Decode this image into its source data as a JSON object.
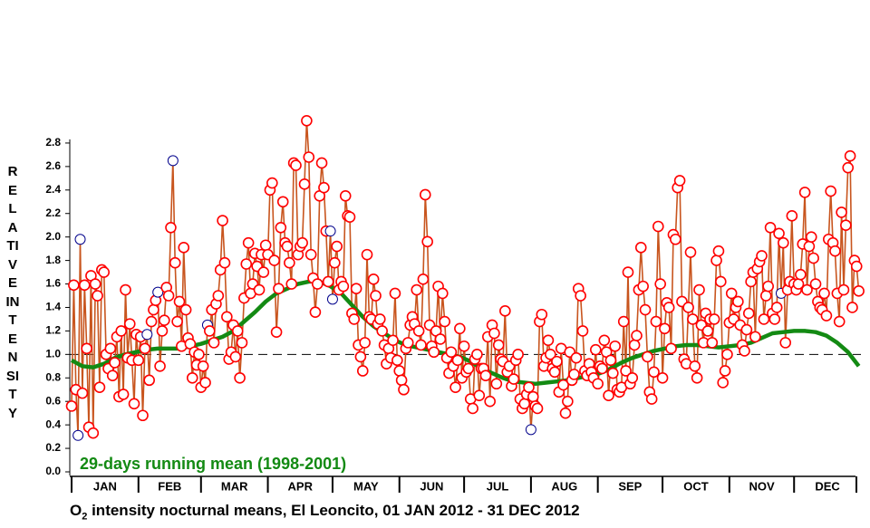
{
  "chart_data": {
    "type": "line",
    "title_main": "O",
    "title_sub": "2",
    "title_rest": " intensity nocturnal means, El Leoncito, 01 JAN 2012 - 31 DEC 2012",
    "ylabel": "RELATIVE INTENSITY",
    "xlim": [
      1,
      367
    ],
    "ylim": [
      0,
      3
    ],
    "yticks": [
      {
        "value": 0,
        "label": "0.0"
      },
      {
        "value": 0.2,
        "label": "0.2"
      },
      {
        "value": 0.4,
        "label": "0.4"
      },
      {
        "value": 0.6,
        "label": "0.6"
      },
      {
        "value": 0.8,
        "label": "0.8"
      },
      {
        "value": 1,
        "label": "1.0"
      },
      {
        "value": 1.2,
        "label": "1.2"
      },
      {
        "value": 1.4,
        "label": "1.4"
      },
      {
        "value": 1.6,
        "label": "1.6"
      },
      {
        "value": 1.8,
        "label": "1.8"
      },
      {
        "value": 2,
        "label": "2.0"
      },
      {
        "value": 2.2,
        "label": "2.2"
      },
      {
        "value": 2.4,
        "label": "2.4"
      },
      {
        "value": 2.6,
        "label": "2.6"
      },
      {
        "value": 2.8,
        "label": "2.8"
      }
    ],
    "month_bounds": [
      1,
      32,
      61,
      92,
      122,
      153,
      183,
      214,
      245,
      275,
      306,
      336,
      367
    ],
    "months": [
      "JAN",
      "FEB",
      "MAR",
      "APR",
      "MAY",
      "JUN",
      "JUL",
      "AUG",
      "SEP",
      "OCT",
      "NOV",
      "DEC"
    ],
    "reference_line": 1,
    "x": [
      1,
      2,
      3,
      4,
      5,
      6,
      7,
      8,
      9,
      10,
      11,
      12,
      13,
      14,
      15,
      16,
      17,
      18,
      19,
      20,
      21,
      22,
      23,
      24,
      25,
      26,
      27,
      28,
      29,
      30,
      31,
      32,
      33,
      34,
      35,
      36,
      37,
      38,
      39,
      40,
      41,
      42,
      43,
      44,
      45,
      46,
      47,
      48,
      49,
      50,
      51,
      52,
      53,
      54,
      55,
      56,
      57,
      58,
      59,
      60,
      61,
      62,
      63,
      64,
      65,
      66,
      67,
      68,
      69,
      70,
      71,
      72,
      73,
      74,
      75,
      76,
      77,
      78,
      79,
      80,
      81,
      82,
      83,
      84,
      85,
      86,
      87,
      88,
      89,
      90,
      91,
      92,
      93,
      94,
      95,
      96,
      97,
      98,
      99,
      100,
      101,
      102,
      103,
      104,
      105,
      106,
      107,
      108,
      109,
      110,
      111,
      112,
      113,
      114,
      115,
      116,
      117,
      118,
      119,
      120,
      121,
      122,
      123,
      124,
      125,
      126,
      127,
      128,
      129,
      130,
      131,
      132,
      133,
      134,
      135,
      136,
      137,
      138,
      139,
      140,
      141,
      142,
      143,
      144,
      145,
      146,
      147,
      148,
      149,
      150,
      151,
      152,
      153,
      154,
      155,
      156,
      157,
      158,
      159,
      160,
      161,
      162,
      163,
      164,
      165,
      166,
      167,
      168,
      169,
      170,
      171,
      172,
      173,
      174,
      175,
      176,
      177,
      178,
      179,
      180,
      181,
      182,
      183,
      184,
      185,
      186,
      187,
      188,
      189,
      190,
      191,
      192,
      193,
      194,
      195,
      196,
      197,
      198,
      199,
      200,
      201,
      202,
      203,
      204,
      205,
      206,
      207,
      208,
      209,
      210,
      211,
      212,
      213,
      214,
      215,
      216,
      217,
      218,
      219,
      220,
      221,
      222,
      223,
      224,
      225,
      226,
      227,
      228,
      229,
      230,
      231,
      232,
      233,
      234,
      235,
      236,
      237,
      238,
      239,
      240,
      241,
      242,
      243,
      244,
      245,
      246,
      247,
      248,
      249,
      250,
      251,
      252,
      253,
      254,
      255,
      256,
      257,
      258,
      259,
      260,
      261,
      262,
      263,
      264,
      265,
      266,
      267,
      268,
      269,
      270,
      271,
      272,
      273,
      274,
      275,
      276,
      277,
      278,
      279,
      280,
      281,
      282,
      283,
      284,
      285,
      286,
      287,
      288,
      289,
      290,
      291,
      292,
      293,
      294,
      295,
      296,
      297,
      298,
      299,
      300,
      301,
      302,
      303,
      304,
      305,
      306,
      307,
      308,
      309,
      310,
      311,
      312,
      313,
      314,
      315,
      316,
      317,
      318,
      319,
      320,
      321,
      322,
      323,
      324,
      325,
      326,
      327,
      328,
      329,
      330,
      331,
      332,
      333,
      334,
      335,
      336,
      337,
      338,
      339,
      340,
      341,
      342,
      343,
      344,
      345,
      346,
      347,
      348,
      349,
      350,
      351,
      352,
      353,
      354,
      355,
      356,
      357,
      358,
      359,
      360,
      361,
      362,
      363,
      364,
      365,
      366
    ],
    "series": [
      {
        "color": "#c8551e",
        "marker_color": "#ff0000",
        "highlight_color": "#00008b",
        "highlight_x": [
          4,
          5,
          36,
          41,
          48,
          64,
          121,
          122,
          214,
          330
        ],
        "values": [
          0.56,
          1.59,
          0.7,
          0.31,
          1.98,
          0.67,
          1.59,
          1.05,
          0.38,
          1.67,
          0.33,
          1.6,
          1.5,
          0.72,
          1.72,
          1.7,
          1.0,
          0.88,
          1.05,
          0.82,
          0.93,
          1.15,
          0.64,
          1.2,
          0.66,
          1.55,
          0.97,
          1.26,
          0.95,
          0.58,
          1.17,
          0.95,
          1.15,
          0.48,
          1.05,
          1.17,
          0.78,
          1.28,
          1.38,
          1.46,
          1.53,
          0.9,
          1.2,
          1.29,
          1.57,
          1.5,
          2.08,
          2.65,
          1.78,
          1.28,
          1.45,
          1.07,
          1.91,
          1.38,
          1.14,
          1.09,
          0.8,
          1.02,
          0.91,
          1.0,
          0.72,
          0.9,
          0.76,
          1.25,
          1.2,
          1.38,
          1.1,
          1.43,
          1.5,
          1.72,
          2.14,
          1.78,
          1.32,
          0.96,
          1.02,
          1.25,
          0.98,
          1.2,
          0.8,
          1.1,
          1.48,
          1.77,
          1.95,
          1.52,
          1.6,
          1.86,
          1.75,
          1.55,
          1.85,
          1.7,
          1.93,
          1.85,
          2.4,
          2.46,
          1.8,
          1.19,
          1.56,
          2.08,
          2.3,
          1.95,
          1.92,
          1.78,
          1.6,
          2.63,
          2.61,
          1.85,
          1.92,
          1.95,
          2.45,
          2.99,
          2.68,
          1.85,
          1.65,
          1.36,
          1.6,
          2.35,
          2.63,
          2.42,
          2.05,
          1.62,
          2.05,
          1.47,
          1.78,
          1.92,
          1.55,
          1.62,
          1.58,
          2.35,
          2.18,
          2.17,
          1.35,
          1.3,
          1.56,
          1.08,
          0.98,
          0.86,
          1.1,
          1.85,
          1.32,
          1.3,
          1.64,
          1.5,
          1.26,
          1.3,
          1.2,
          1.08,
          0.92,
          1.05,
          0.97,
          1.12,
          1.52,
          0.95,
          0.86,
          0.78,
          0.7,
          1.05,
          1.1,
          1.25,
          1.32,
          1.26,
          1.55,
          1.2,
          1.08,
          1.64,
          2.36,
          1.96,
          1.25,
          1.07,
          1.02,
          1.2,
          1.58,
          1.13,
          1.52,
          1.28,
          0.97,
          0.84,
          1.02,
          0.9,
          0.72,
          0.95,
          1.22,
          0.8,
          1.07,
          0.85,
          0.88,
          0.62,
          0.54,
          0.96,
          1.0,
          0.65,
          0.88,
          0.88,
          0.82,
          1.15,
          0.6,
          1.25,
          1.18,
          0.75,
          1.08,
          0.96,
          0.94,
          1.37,
          0.85,
          0.9,
          0.73,
          0.79,
          0.95,
          1.0,
          0.62,
          0.54,
          0.58,
          0.66,
          0.72,
          0.36,
          0.64,
          0.56,
          0.54,
          1.28,
          1.34,
          0.9,
          0.97,
          1.12,
          1.0,
          0.88,
          0.85,
          0.94,
          0.68,
          1.05,
          0.74,
          0.5,
          0.6,
          1.02,
          0.78,
          0.83,
          0.97,
          1.56,
          1.5,
          1.2,
          0.86,
          0.82,
          0.92,
          0.85,
          0.8,
          1.04,
          0.75,
          0.9,
          0.88,
          1.12,
          1.02,
          0.65,
          0.95,
          0.84,
          1.07,
          0.7,
          0.68,
          0.72,
          1.28,
          0.86,
          1.7,
          0.75,
          0.8,
          1.08,
          1.16,
          1.55,
          1.91,
          1.58,
          1.38,
          0.98,
          0.68,
          0.62,
          0.85,
          1.28,
          2.09,
          1.6,
          0.8,
          1.22,
          1.44,
          1.4,
          1.05,
          2.02,
          1.98,
          2.42,
          2.48,
          1.45,
          0.96,
          0.92,
          1.4,
          1.87,
          1.3,
          0.9,
          0.8,
          1.55,
          1.25,
          1.1,
          1.35,
          1.2,
          1.3,
          1.1,
          1.3,
          1.8,
          1.88,
          1.62,
          0.76,
          0.86,
          1.0,
          1.27,
          1.52,
          1.3,
          1.4,
          1.45,
          1.25,
          1.08,
          1.03,
          1.21,
          1.35,
          1.62,
          1.7,
          1.15,
          1.73,
          1.79,
          1.84,
          1.3,
          1.5,
          1.58,
          2.08,
          1.35,
          1.3,
          1.4,
          2.03,
          1.52,
          1.95,
          1.1,
          1.55,
          1.62,
          2.18,
          1.6,
          1.55,
          1.6,
          1.68,
          1.94,
          2.38,
          1.55,
          1.92,
          2.0,
          1.82,
          1.6,
          1.45,
          1.4,
          1.38,
          1.52,
          1.33,
          1.98,
          2.39,
          1.95,
          1.88,
          1.52,
          1.28,
          2.21,
          1.55,
          2.1,
          2.59,
          2.69,
          1.4,
          1.8,
          1.75,
          1.54
        ]
      },
      {
        "name": "29-days running mean (1998-2001)",
        "color": "#138a13",
        "x": [
          1,
          6,
          11,
          16,
          21,
          26,
          31,
          36,
          41,
          46,
          51,
          56,
          61,
          66,
          71,
          76,
          81,
          86,
          91,
          96,
          101,
          106,
          111,
          116,
          121,
          126,
          131,
          136,
          141,
          146,
          151,
          156,
          161,
          166,
          171,
          176,
          181,
          186,
          191,
          196,
          201,
          206,
          211,
          216,
          221,
          226,
          231,
          236,
          241,
          246,
          251,
          256,
          261,
          266,
          271,
          276,
          281,
          286,
          291,
          296,
          301,
          306,
          311,
          316,
          321,
          326,
          331,
          336,
          341,
          346,
          351,
          356,
          361,
          366
        ],
        "values": [
          0.95,
          0.9,
          0.89,
          0.92,
          0.97,
          1.0,
          1.02,
          1.04,
          1.05,
          1.05,
          1.05,
          1.07,
          1.09,
          1.12,
          1.15,
          1.2,
          1.28,
          1.36,
          1.45,
          1.52,
          1.56,
          1.6,
          1.62,
          1.62,
          1.58,
          1.52,
          1.42,
          1.32,
          1.24,
          1.18,
          1.12,
          1.08,
          1.06,
          1.04,
          1.02,
          1.0,
          0.98,
          0.94,
          0.88,
          0.84,
          0.8,
          0.77,
          0.76,
          0.75,
          0.76,
          0.77,
          0.78,
          0.8,
          0.82,
          0.84,
          0.88,
          0.93,
          0.97,
          1.0,
          1.03,
          1.05,
          1.07,
          1.08,
          1.08,
          1.07,
          1.06,
          1.07,
          1.08,
          1.1,
          1.14,
          1.18,
          1.19,
          1.2,
          1.2,
          1.19,
          1.16,
          1.1,
          1.02,
          0.9
        ]
      }
    ]
  }
}
